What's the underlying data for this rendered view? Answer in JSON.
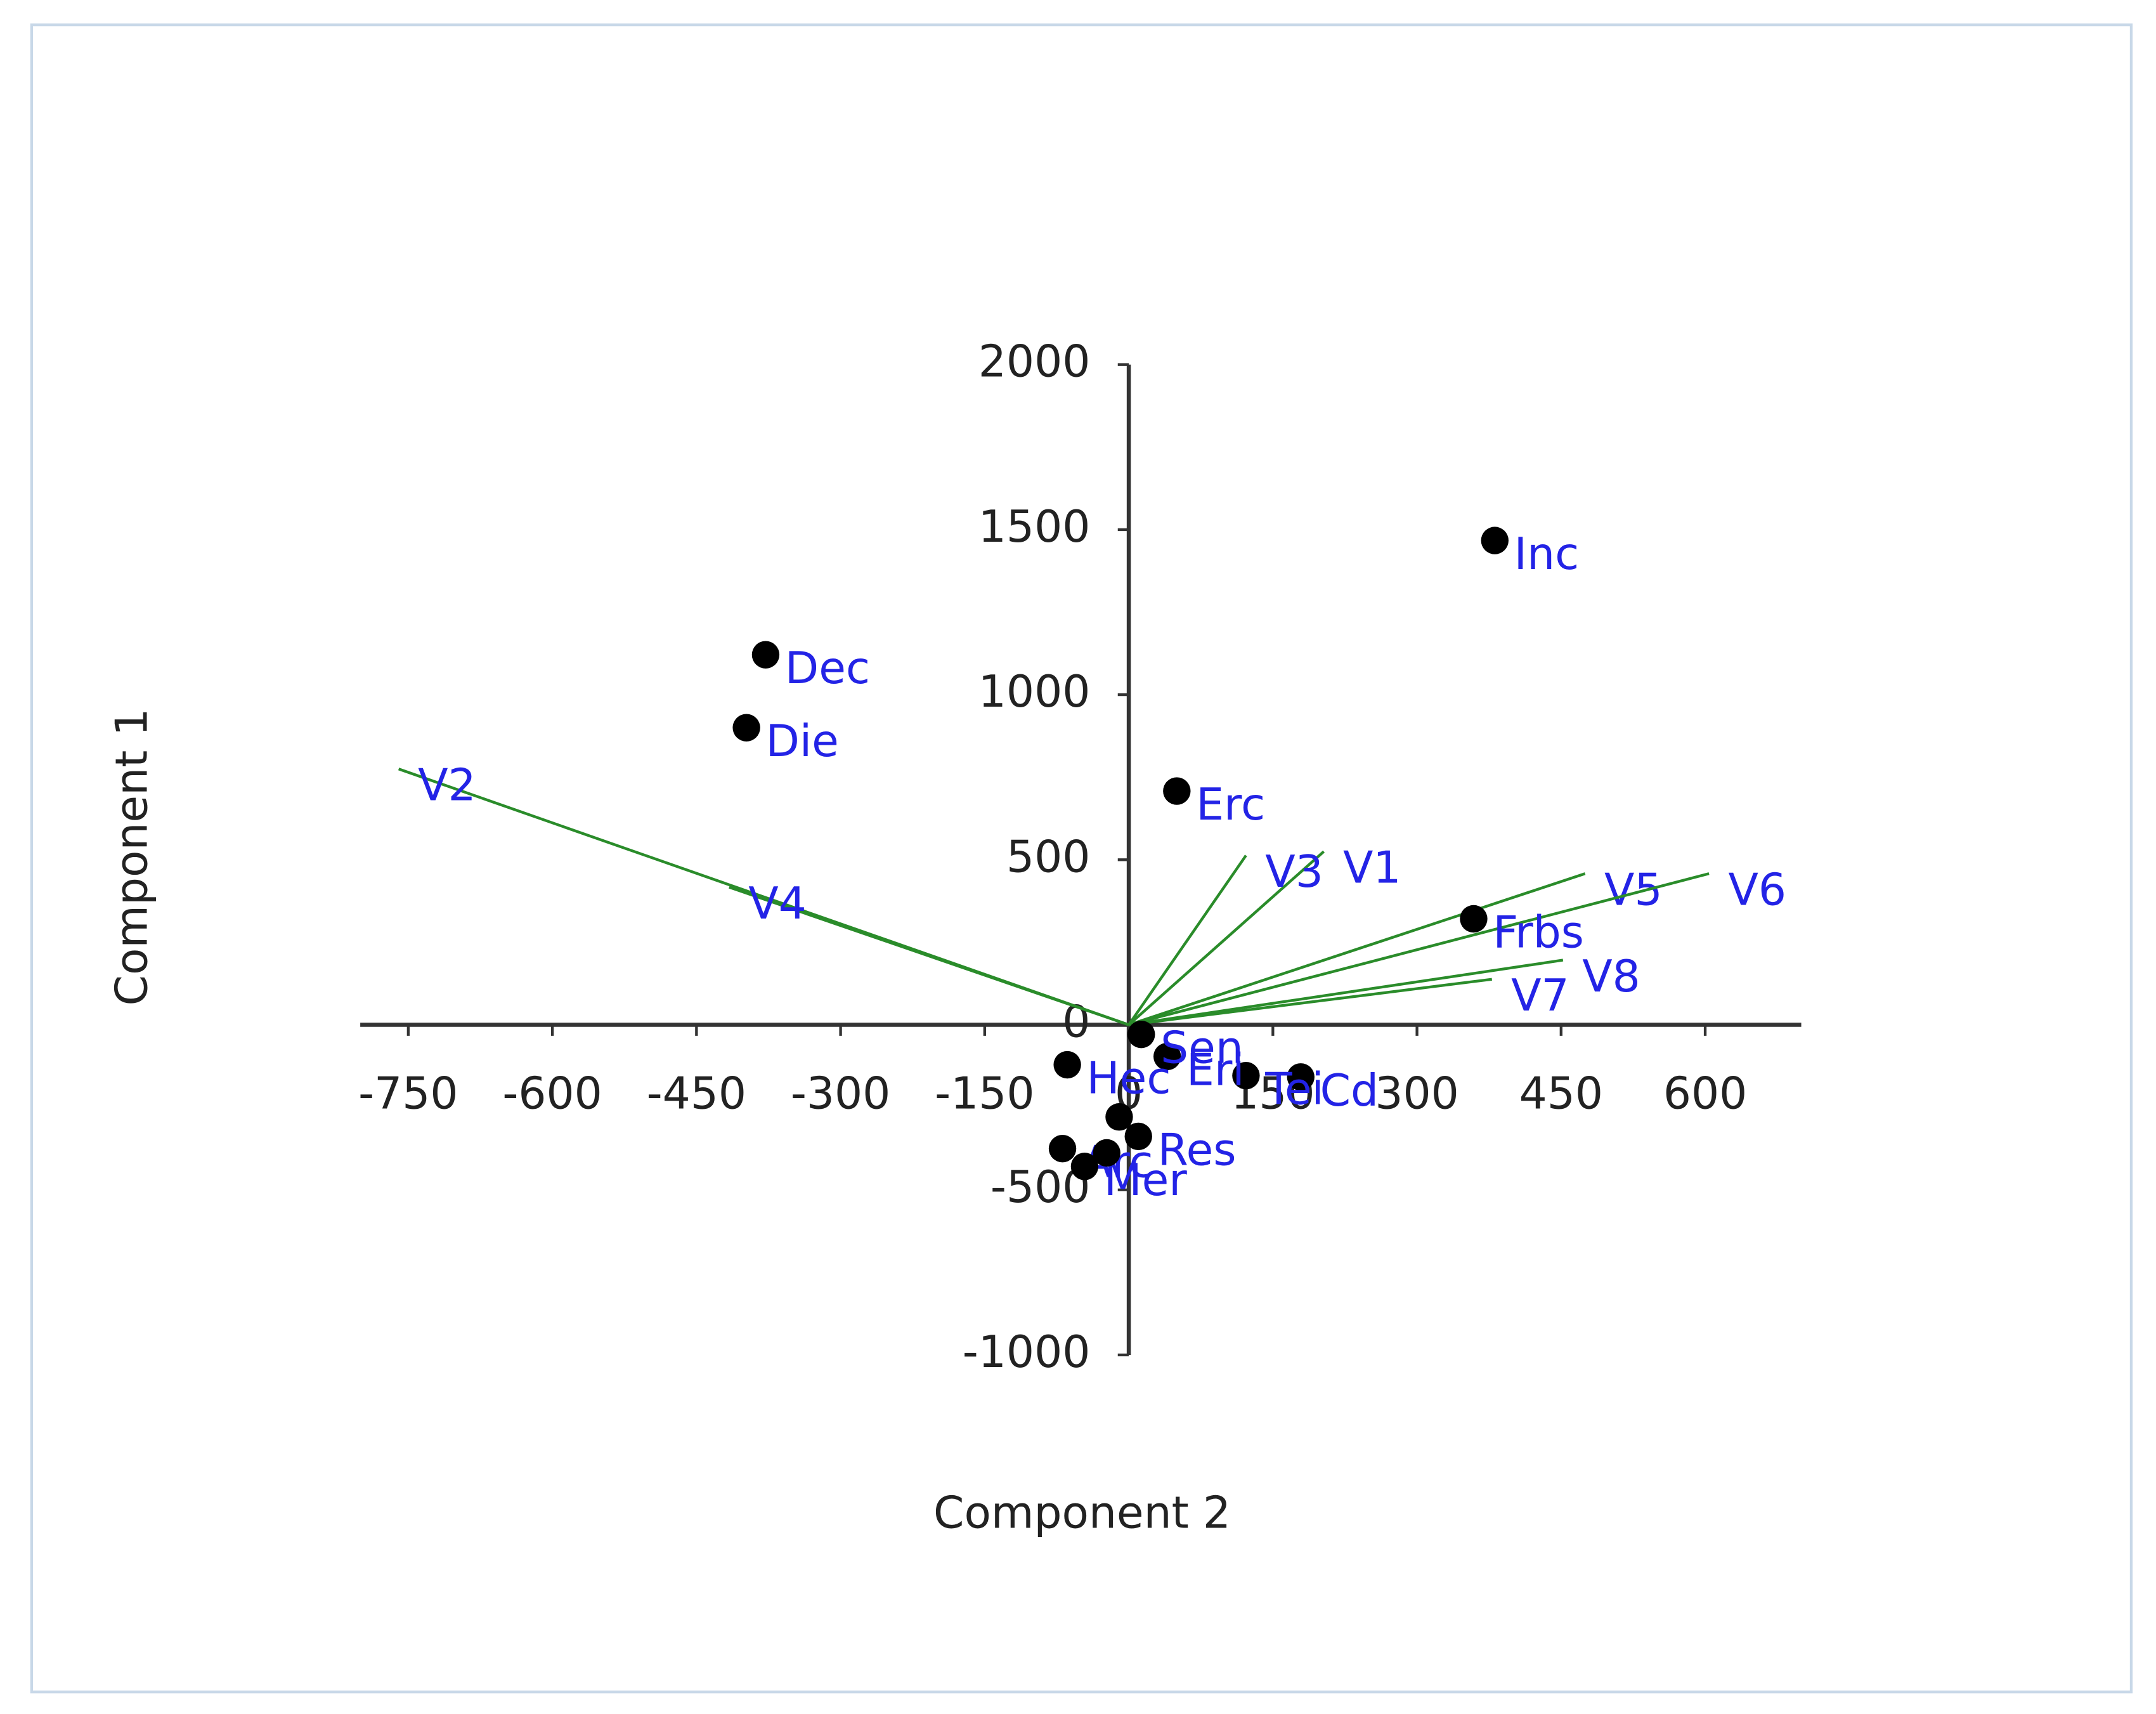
{
  "chart_data": {
    "type": "biplot",
    "x_label": "Component 2",
    "y_label": "Component 1",
    "xlim": [
      -800,
      700
    ],
    "ylim": [
      -1000,
      2000
    ],
    "xticks": [
      -750,
      -600,
      -450,
      -300,
      -150,
      0,
      150,
      300,
      450,
      600
    ],
    "yticks": [
      -1000,
      -500,
      0,
      500,
      1000,
      1500,
      2000
    ],
    "points": {
      "color": "#000000",
      "label_color": "#2323e6",
      "labels": [
        "Inc",
        "Dec",
        "Die",
        "Erc",
        "Frbs",
        "Cd",
        "Tei",
        "Eri",
        "Sen",
        "Hec",
        "Arc",
        "Res",
        "Mer",
        null,
        null
      ],
      "x": [
        381,
        -378,
        -398,
        50,
        359,
        179,
        122,
        40,
        13,
        -64,
        -69,
        10,
        -46,
        -10,
        -23
      ],
      "y": [
        1467,
        1121,
        900,
        708,
        321,
        -158,
        -154,
        -96,
        -29,
        -121,
        -375,
        -338,
        -429,
        -279,
        -388
      ]
    },
    "vectors": {
      "color": "#2a8c2a",
      "label_color": "#2323e6",
      "labels": [
        "V1",
        "V2",
        "V3",
        "V4",
        "V5",
        "V6",
        "V7",
        "V8"
      ],
      "x": [
        203,
        -760,
        122,
        -416,
        475,
        604,
        378,
        452
      ],
      "y": [
        525,
        775,
        513,
        417,
        458,
        458,
        138,
        196
      ]
    }
  }
}
